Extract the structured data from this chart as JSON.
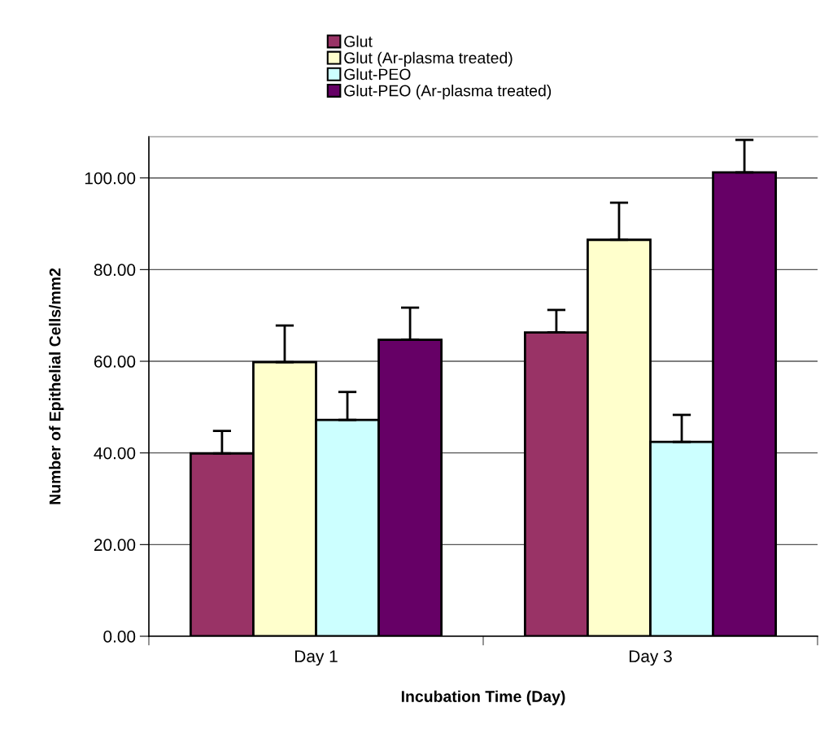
{
  "chart_data": {
    "type": "bar",
    "xlabel": "Incubation Time (Day)",
    "ylabel": "Number of Epithelial Cells/mm2",
    "categories": [
      "Day 1",
      "Day 3"
    ],
    "series": [
      {
        "name": "Glut",
        "color": "#993366",
        "values": [
          39.9,
          66.3
        ],
        "errors": [
          [
            39.9,
            44.8
          ],
          [
            66.3,
            71.2
          ]
        ]
      },
      {
        "name": "Glut (Ar-plasma treated)",
        "color": "#ffffcc",
        "values": [
          59.8,
          86.5
        ],
        "errors": [
          [
            59.8,
            67.8
          ],
          [
            86.5,
            94.6
          ]
        ]
      },
      {
        "name": "Glut-PEO",
        "color": "#ccffff",
        "values": [
          47.2,
          42.4
        ],
        "errors": [
          [
            47.2,
            53.3
          ],
          [
            42.4,
            48.3
          ]
        ]
      },
      {
        "name": "Glut-PEO (Ar-plasma treated)",
        "color": "#660066",
        "values": [
          64.7,
          101.2
        ],
        "errors": [
          [
            64.7,
            71.7
          ],
          [
            101.2,
            108.3
          ]
        ]
      }
    ],
    "ylim": [
      0,
      109
    ],
    "yticks": [
      {
        "value": 0,
        "label": "0.00"
      },
      {
        "value": 20,
        "label": "20.00"
      },
      {
        "value": 40,
        "label": "40.00"
      },
      {
        "value": 60,
        "label": "60.00"
      },
      {
        "value": 80,
        "label": "80.00"
      },
      {
        "value": 100,
        "label": "100.00"
      }
    ],
    "grid": "y",
    "legend": "top"
  }
}
